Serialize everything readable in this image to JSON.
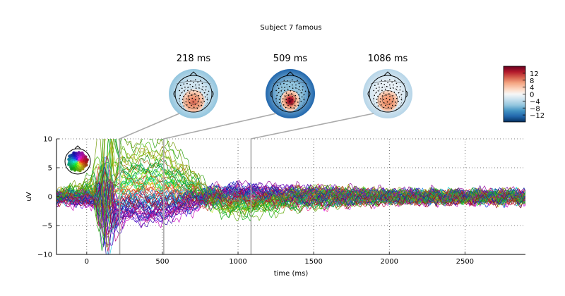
{
  "chart_data": {
    "type": "line",
    "title": "Subject 7 famous",
    "xlabel": "time (ms)",
    "ylabel": "uV",
    "xlim": [
      -200,
      2900
    ],
    "ylim": [
      -10,
      10
    ],
    "xticks": [
      0,
      500,
      1000,
      1500,
      2000,
      2500
    ],
    "yticks": [
      -10,
      -5,
      0,
      5,
      10
    ],
    "grid": true,
    "grid_style": "dotted",
    "n_channels": 70,
    "sample_step_ms": 10,
    "legend": "sensor-location head inset, top-left (colours = channel positions)",
    "topomaps": [
      {
        "time": 218,
        "label": "218 ms"
      },
      {
        "time": 509,
        "label": "509 ms"
      },
      {
        "time": 1086,
        "label": "1086 ms"
      }
    ],
    "colorbar": {
      "cmap": "RdBu_r",
      "vmin": -16,
      "vmax": 16,
      "ticks": [
        12,
        8,
        4,
        0,
        -4,
        -8,
        -12
      ],
      "tick_labels": [
        "12",
        "8",
        "4",
        "0",
        "−4",
        "−8",
        "−12"
      ]
    },
    "colors": {
      "guide_line": "#aaaaaa",
      "grid": "#000000",
      "background": "#ffffff"
    }
  }
}
